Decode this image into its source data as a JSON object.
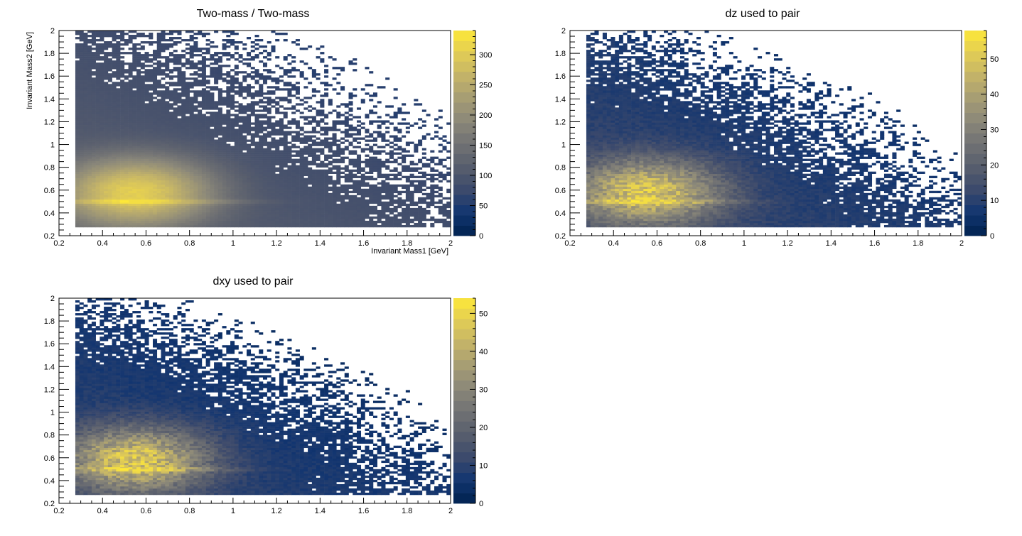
{
  "chart_data": [
    {
      "type": "heatmap",
      "title": "Two-mass / Two-mass",
      "xlabel": "Invariant Mass1 [GeV]",
      "ylabel": "Invariant Mass2 [GeV]",
      "xlim": [
        0.2,
        2.0
      ],
      "ylim": [
        0.2,
        2.0
      ],
      "x_ticks": [
        "0.2",
        "0.4",
        "0.6",
        "0.8",
        "1",
        "1.2",
        "1.4",
        "1.6",
        "1.8",
        "2"
      ],
      "y_ticks": [
        "0.2",
        "0.4",
        "0.6",
        "0.8",
        "1",
        "1.2",
        "1.4",
        "1.6",
        "1.8",
        "2"
      ],
      "x_tick_values": [
        0.2,
        0.4,
        0.6,
        0.8,
        1.0,
        1.2,
        1.4,
        1.6,
        1.8,
        2.0
      ],
      "y_tick_values": [
        0.2,
        0.4,
        0.6,
        0.8,
        1.0,
        1.2,
        1.4,
        1.6,
        1.8,
        2.0
      ],
      "data_range": {
        "x": [
          0.27,
          2.0
        ],
        "y": [
          0.28,
          2.0
        ]
      },
      "colorbar": {
        "min": 0,
        "max": 340,
        "ticks": [
          0,
          50,
          100,
          150,
          200,
          250,
          300
        ],
        "tick_labels": [
          "0",
          "50",
          "100",
          "150",
          "200",
          "250",
          "300"
        ]
      },
      "peak": {
        "x": 0.5,
        "y": 0.5,
        "value": 340
      },
      "grid": false
    },
    {
      "type": "heatmap",
      "title": "dz used to pair",
      "xlabel": "",
      "ylabel": "",
      "xlim": [
        0.2,
        2.0
      ],
      "ylim": [
        0.2,
        2.0
      ],
      "x_ticks": [
        "0.2",
        "0.4",
        "0.6",
        "0.8",
        "1",
        "1.2",
        "1.4",
        "1.6",
        "1.8",
        "2"
      ],
      "y_ticks": [
        "0.2",
        "0.4",
        "0.6",
        "0.8",
        "1",
        "1.2",
        "1.4",
        "1.6",
        "1.8",
        "2"
      ],
      "x_tick_values": [
        0.2,
        0.4,
        0.6,
        0.8,
        1.0,
        1.2,
        1.4,
        1.6,
        1.8,
        2.0
      ],
      "y_tick_values": [
        0.2,
        0.4,
        0.6,
        0.8,
        1.0,
        1.2,
        1.4,
        1.6,
        1.8,
        2.0
      ],
      "data_range": {
        "x": [
          0.27,
          2.0
        ],
        "y": [
          0.28,
          2.0
        ]
      },
      "colorbar": {
        "min": 0,
        "max": 58,
        "ticks": [
          0,
          10,
          20,
          30,
          40,
          50
        ],
        "tick_labels": [
          "0",
          "10",
          "20",
          "30",
          "40",
          "50"
        ]
      },
      "peak": {
        "x": 0.5,
        "y": 0.5,
        "value": 58
      },
      "grid": false
    },
    {
      "type": "heatmap",
      "title": "dxy used to pair",
      "xlabel": "",
      "ylabel": "",
      "xlim": [
        0.2,
        2.0
      ],
      "ylim": [
        0.2,
        2.0
      ],
      "x_ticks": [
        "0.2",
        "0.4",
        "0.6",
        "0.8",
        "1",
        "1.2",
        "1.4",
        "1.6",
        "1.8",
        "2"
      ],
      "y_ticks": [
        "0.2",
        "0.4",
        "0.6",
        "0.8",
        "1",
        "1.2",
        "1.4",
        "1.6",
        "1.8",
        "2"
      ],
      "x_tick_values": [
        0.2,
        0.4,
        0.6,
        0.8,
        1.0,
        1.2,
        1.4,
        1.6,
        1.8,
        2.0
      ],
      "y_tick_values": [
        0.2,
        0.4,
        0.6,
        0.8,
        1.0,
        1.2,
        1.4,
        1.6,
        1.8,
        2.0
      ],
      "data_range": {
        "x": [
          0.27,
          2.0
        ],
        "y": [
          0.28,
          2.0
        ]
      },
      "colorbar": {
        "min": 0,
        "max": 54,
        "ticks": [
          0,
          10,
          20,
          30,
          40,
          50
        ],
        "tick_labels": [
          "0",
          "10",
          "20",
          "30",
          "40",
          "50"
        ]
      },
      "peak": {
        "x": 0.5,
        "y": 0.5,
        "value": 54
      },
      "grid": false
    }
  ],
  "palette": {
    "name": "cividis",
    "stops": [
      "#00224e",
      "#123570",
      "#3b496c",
      "#575d6d",
      "#707173",
      "#8a8779",
      "#a59c74",
      "#c3b369",
      "#e1cc55",
      "#fee838"
    ]
  }
}
